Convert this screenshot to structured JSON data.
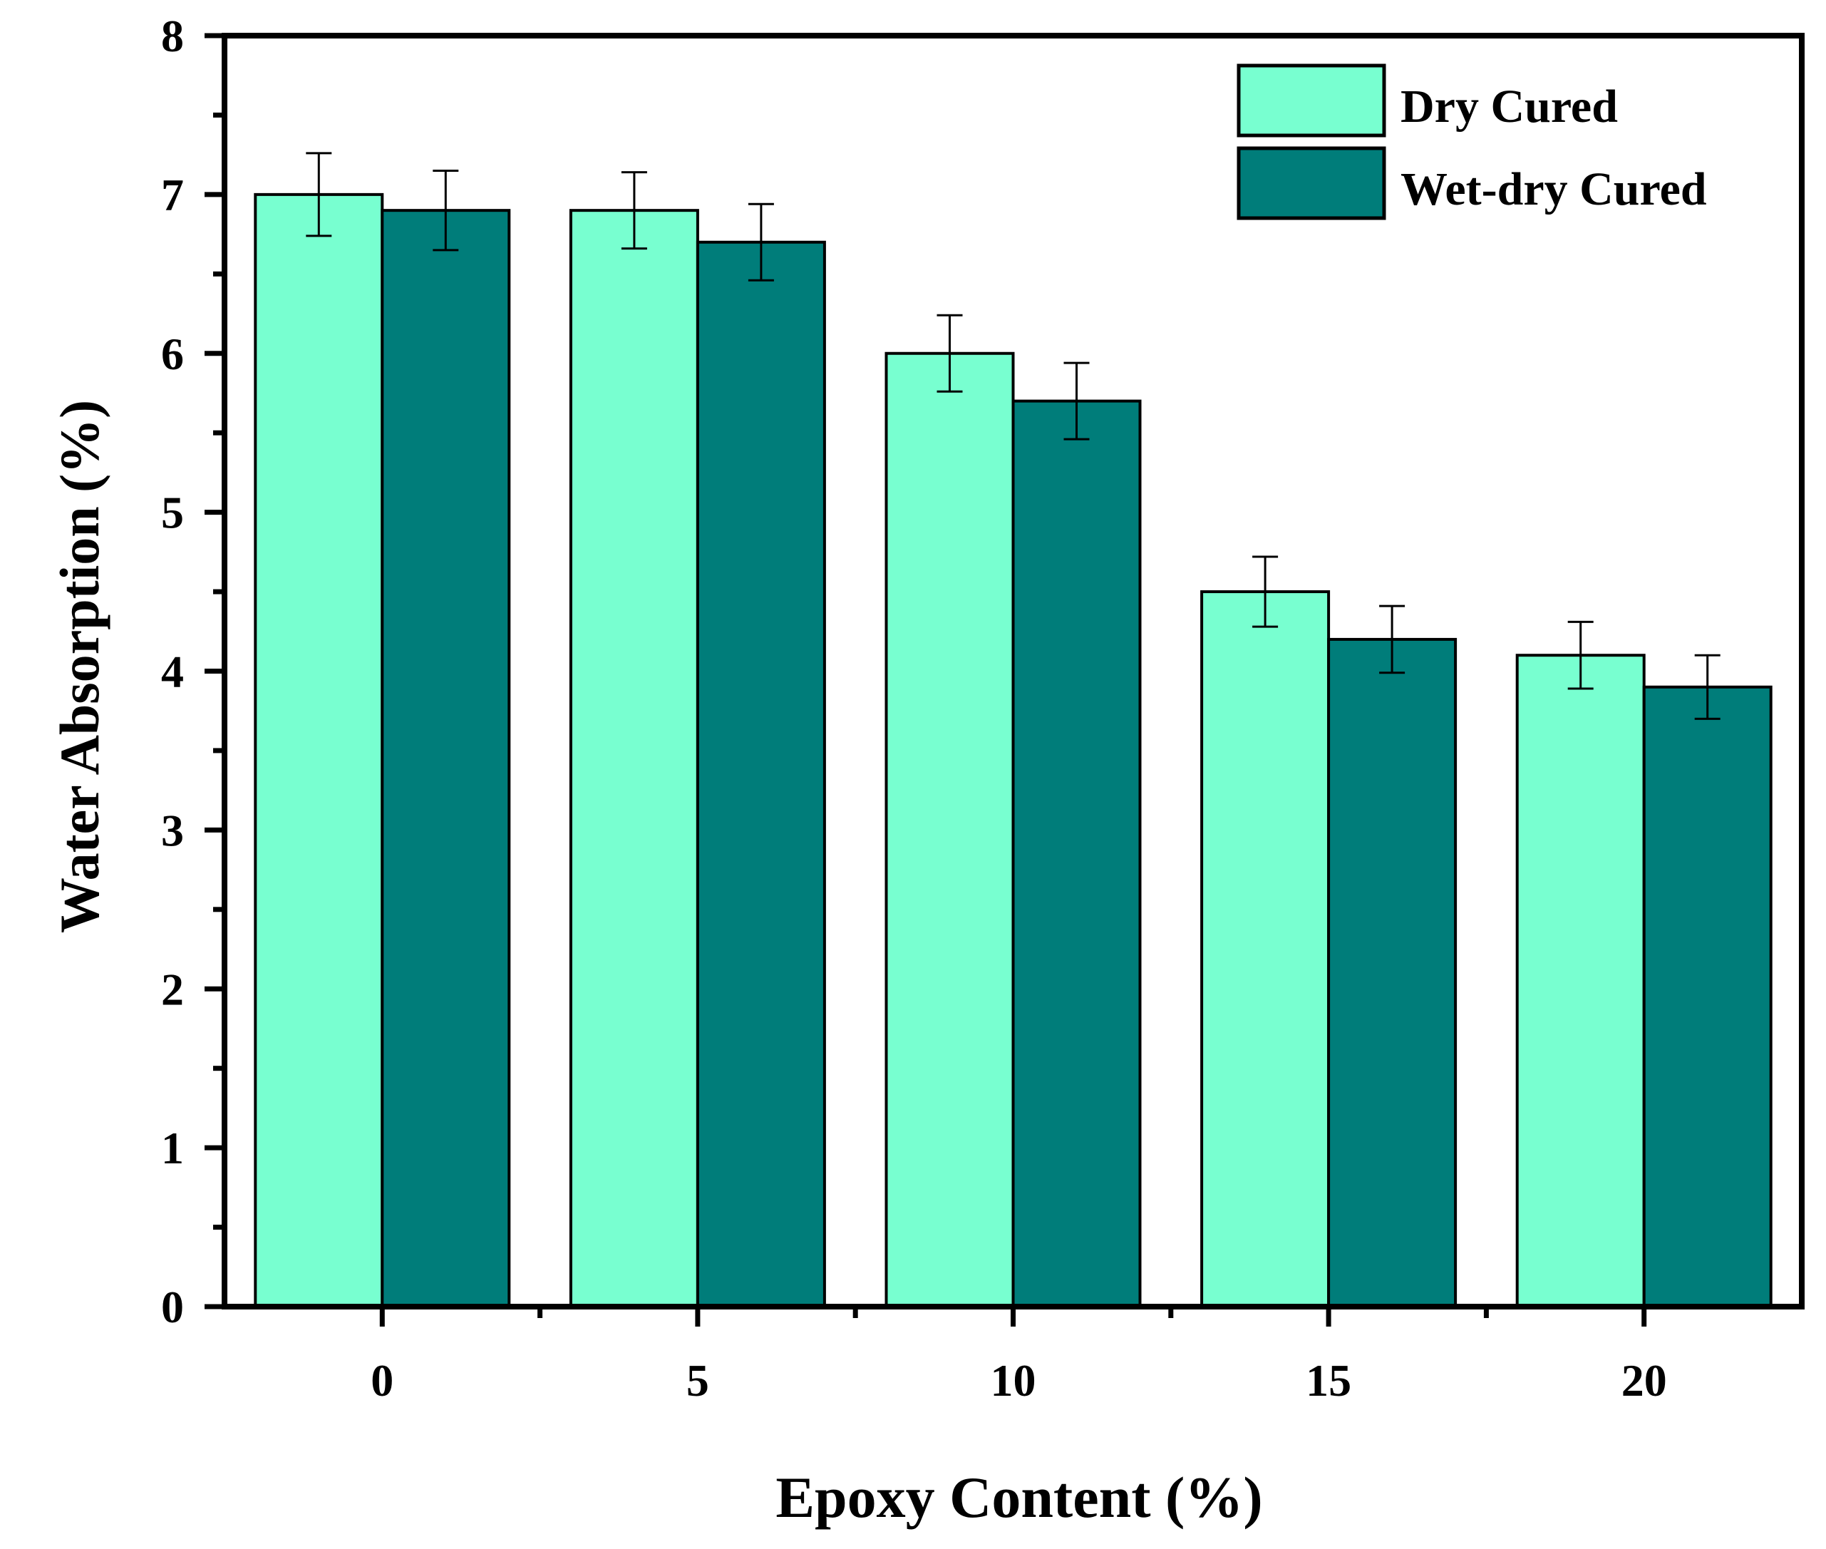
{
  "chart_data": {
    "type": "bar",
    "title": "",
    "xlabel": "Epoxy Content (%)",
    "ylabel": "Water Absorption (%)",
    "ylim": [
      0,
      8
    ],
    "yticks": [
      "0",
      "1",
      "2",
      "3",
      "4",
      "5",
      "6",
      "7",
      "8"
    ],
    "categories": [
      "0",
      "5",
      "10",
      "15",
      "20"
    ],
    "legend_position": "top-right",
    "grid": false,
    "series": [
      {
        "name": "Dry Cured",
        "color": "#78FFD0",
        "values": [
          7.0,
          6.9,
          6.0,
          4.5,
          4.1
        ],
        "errors": [
          0.26,
          0.24,
          0.24,
          0.22,
          0.21
        ]
      },
      {
        "name": "Wet-dry Cured",
        "color": "#007D7A",
        "values": [
          6.9,
          6.7,
          5.7,
          4.2,
          3.9
        ],
        "errors": [
          0.25,
          0.24,
          0.24,
          0.21,
          0.2
        ]
      }
    ]
  }
}
